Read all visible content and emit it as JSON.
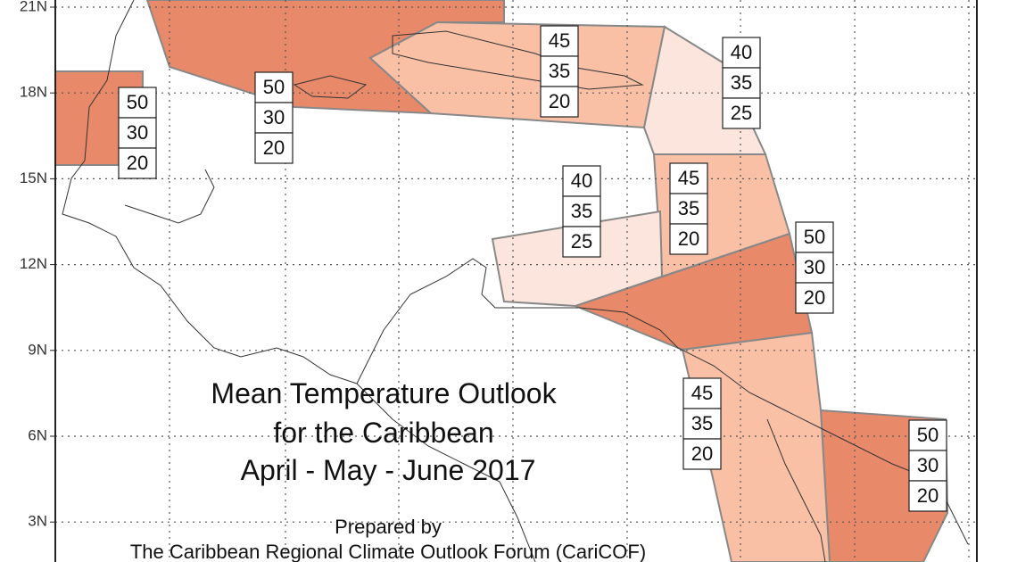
{
  "lat_labels": [
    "21N",
    "18N",
    "15N",
    "12N",
    "9N",
    "6N",
    "3N"
  ],
  "title": [
    "Mean Temperature Outlook",
    "for the Caribbean",
    "April - May - June 2017"
  ],
  "credit": [
    "Prepared by",
    "The Caribbean Regional Climate Outlook Forum (CariCOF)"
  ],
  "regions": [
    {
      "above": 50,
      "normal": 30,
      "below": 20
    },
    {
      "above": 50,
      "normal": 30,
      "below": 20
    },
    {
      "above": 45,
      "normal": 35,
      "below": 20
    },
    {
      "above": 40,
      "normal": 35,
      "below": 25
    },
    {
      "above": 40,
      "normal": 35,
      "below": 25
    },
    {
      "above": 45,
      "normal": 35,
      "below": 20
    },
    {
      "above": 50,
      "normal": 30,
      "below": 20
    },
    {
      "above": 45,
      "normal": 35,
      "below": 20
    },
    {
      "above": 50,
      "normal": 30,
      "below": 20
    }
  ]
}
